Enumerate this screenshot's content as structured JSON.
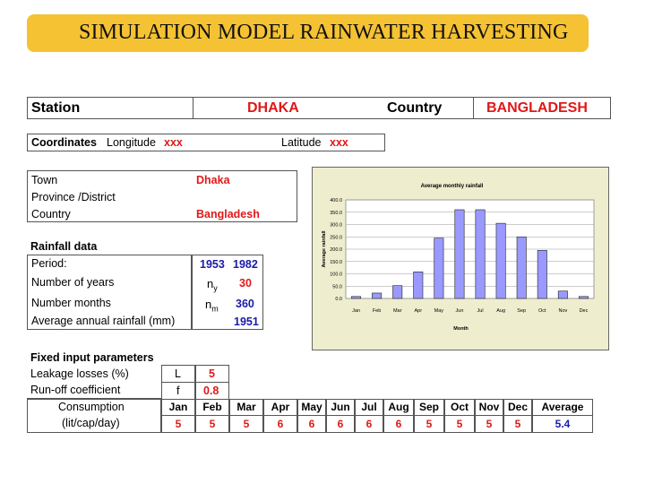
{
  "title": "SIMULATION MODEL RAINWATER HARVESTING",
  "station": {
    "label": "Station",
    "value": "DHAKA",
    "country_label": "Country",
    "country_value": "BANGLADESH"
  },
  "coordinates": {
    "label": "Coordinates",
    "longitude_label": "Longitude",
    "longitude_value": "xxx",
    "latitude_label": "Latitude",
    "latitude_value": "xxx"
  },
  "location": {
    "town_label": "Town",
    "town_value": "Dhaka",
    "province_label": "Province /District",
    "country_label": "Country",
    "country_value": "Bangladesh"
  },
  "rainfall": {
    "header": "Rainfall data",
    "period_label": "Period:",
    "period_start": "1953",
    "period_end": "1982",
    "years_label": "Number of years",
    "years_symbol": "n",
    "years_sub": "y",
    "years_value": "30",
    "months_label": "Number months",
    "months_symbol": "n",
    "months_sub": "m",
    "months_value": "360",
    "avg_label": "Average annual rainfall (mm)",
    "avg_value": "1951"
  },
  "fixed": {
    "header": "Fixed input parameters",
    "leakage_label": "Leakage losses (%)",
    "leakage_symbol": "L",
    "leakage_value": "5",
    "runoff_label": "Run-off coefficient",
    "runoff_symbol": "f",
    "runoff_value": "0.8"
  },
  "consumption": {
    "label_line1": "Consumption",
    "label_line2": "(lit/cap/day)",
    "months": [
      "Jan",
      "Feb",
      "Mar",
      "Apr",
      "May",
      "Jun",
      "Jul",
      "Aug",
      "Sep",
      "Oct",
      "Nov",
      "Dec",
      "Average"
    ],
    "values": [
      "5",
      "5",
      "5",
      "6",
      "6",
      "6",
      "6",
      "6",
      "5",
      "5",
      "5",
      "5",
      "5.4"
    ]
  },
  "chart_data": {
    "type": "bar",
    "title": "Average monthly rainfall",
    "xlabel": "Month",
    "ylabel": "Average rainfall",
    "categories": [
      "Jan",
      "Feb",
      "Mar",
      "Apr",
      "May",
      "Jun",
      "Jul",
      "Aug",
      "Sep",
      "Oct",
      "Nov",
      "Dec"
    ],
    "values": [
      8,
      22,
      52,
      108,
      245,
      360,
      360,
      305,
      250,
      195,
      30,
      8
    ],
    "ylim": [
      0,
      400
    ],
    "yticks": [
      "0.0",
      "50.0",
      "100.0",
      "150.0",
      "200.0",
      "250.0",
      "300.0",
      "350.0",
      "400.0"
    ],
    "bar_color": "#9999ff",
    "plot_background": "#ffffff",
    "chart_background": "#eeeecf",
    "grid": true
  },
  "colors": {
    "banner": "#f5c233",
    "value_red": "#e01818",
    "value_blue": "#1a1aa8"
  }
}
